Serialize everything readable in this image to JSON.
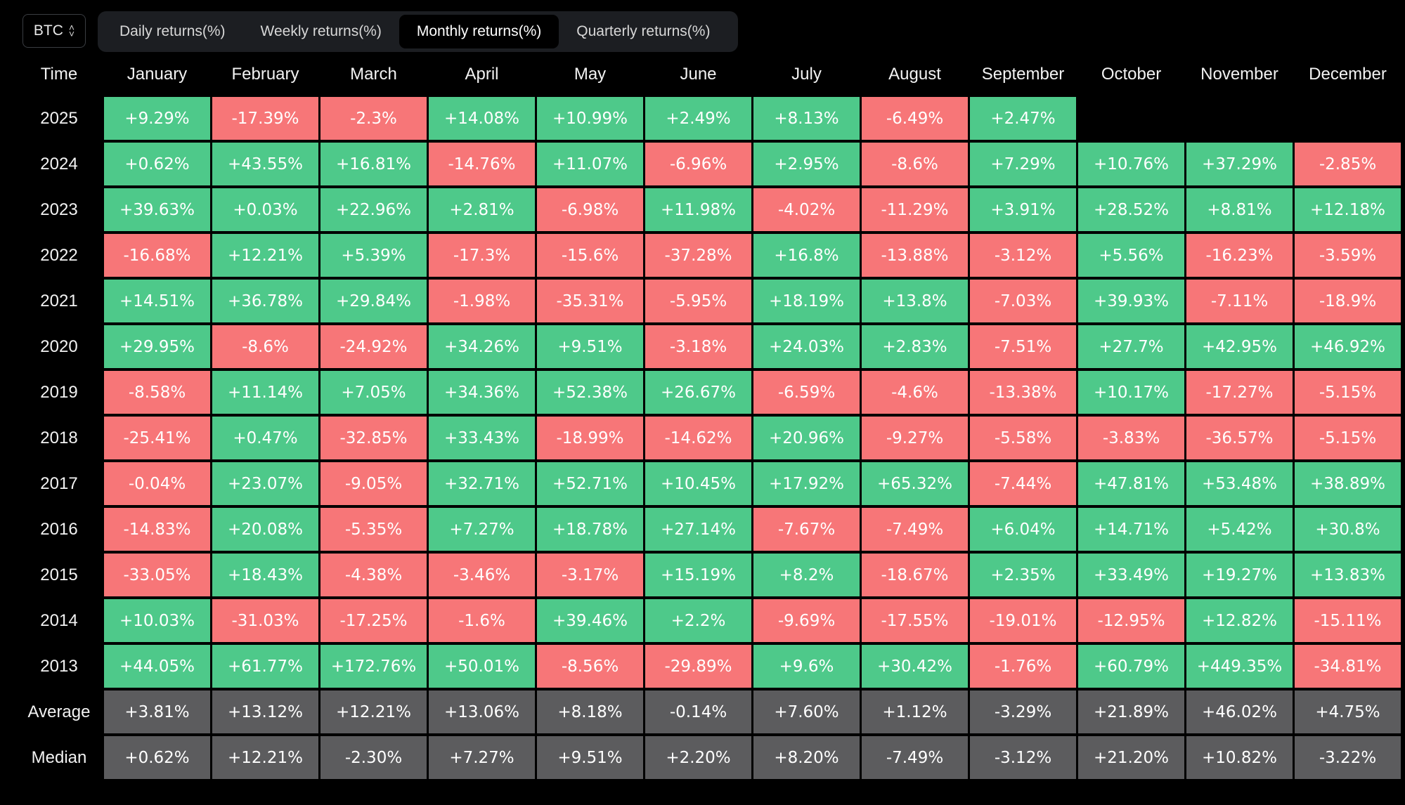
{
  "asset_selector": {
    "value": "BTC"
  },
  "tabs": [
    {
      "label": "Daily returns(%)",
      "active": false
    },
    {
      "label": "Weekly returns(%)",
      "active": false
    },
    {
      "label": "Monthly returns(%)",
      "active": true
    },
    {
      "label": "Quarterly returns(%)",
      "active": false
    }
  ],
  "colors": {
    "positive": "#4ec98a",
    "negative": "#f77678",
    "stat": "#5c5c5e",
    "background": "#000000"
  },
  "chart_data": {
    "type": "heatmap",
    "row_header": "Time",
    "columns": [
      "January",
      "February",
      "March",
      "April",
      "May",
      "June",
      "July",
      "August",
      "September",
      "October",
      "November",
      "December"
    ],
    "rows": [
      {
        "label": "2025",
        "values": [
          "+9.29%",
          "-17.39%",
          "-2.3%",
          "+14.08%",
          "+10.99%",
          "+2.49%",
          "+8.13%",
          "-6.49%",
          "+2.47%",
          "",
          "",
          ""
        ]
      },
      {
        "label": "2024",
        "values": [
          "+0.62%",
          "+43.55%",
          "+16.81%",
          "-14.76%",
          "+11.07%",
          "-6.96%",
          "+2.95%",
          "-8.6%",
          "+7.29%",
          "+10.76%",
          "+37.29%",
          "-2.85%"
        ]
      },
      {
        "label": "2023",
        "values": [
          "+39.63%",
          "+0.03%",
          "+22.96%",
          "+2.81%",
          "-6.98%",
          "+11.98%",
          "-4.02%",
          "-11.29%",
          "+3.91%",
          "+28.52%",
          "+8.81%",
          "+12.18%"
        ]
      },
      {
        "label": "2022",
        "values": [
          "-16.68%",
          "+12.21%",
          "+5.39%",
          "-17.3%",
          "-15.6%",
          "-37.28%",
          "+16.8%",
          "-13.88%",
          "-3.12%",
          "+5.56%",
          "-16.23%",
          "-3.59%"
        ]
      },
      {
        "label": "2021",
        "values": [
          "+14.51%",
          "+36.78%",
          "+29.84%",
          "-1.98%",
          "-35.31%",
          "-5.95%",
          "+18.19%",
          "+13.8%",
          "-7.03%",
          "+39.93%",
          "-7.11%",
          "-18.9%"
        ]
      },
      {
        "label": "2020",
        "values": [
          "+29.95%",
          "-8.6%",
          "-24.92%",
          "+34.26%",
          "+9.51%",
          "-3.18%",
          "+24.03%",
          "+2.83%",
          "-7.51%",
          "+27.7%",
          "+42.95%",
          "+46.92%"
        ]
      },
      {
        "label": "2019",
        "values": [
          "-8.58%",
          "+11.14%",
          "+7.05%",
          "+34.36%",
          "+52.38%",
          "+26.67%",
          "-6.59%",
          "-4.6%",
          "-13.38%",
          "+10.17%",
          "-17.27%",
          "-5.15%"
        ]
      },
      {
        "label": "2018",
        "values": [
          "-25.41%",
          "+0.47%",
          "-32.85%",
          "+33.43%",
          "-18.99%",
          "-14.62%",
          "+20.96%",
          "-9.27%",
          "-5.58%",
          "-3.83%",
          "-36.57%",
          "-5.15%"
        ]
      },
      {
        "label": "2017",
        "values": [
          "-0.04%",
          "+23.07%",
          "-9.05%",
          "+32.71%",
          "+52.71%",
          "+10.45%",
          "+17.92%",
          "+65.32%",
          "-7.44%",
          "+47.81%",
          "+53.48%",
          "+38.89%"
        ]
      },
      {
        "label": "2016",
        "values": [
          "-14.83%",
          "+20.08%",
          "-5.35%",
          "+7.27%",
          "+18.78%",
          "+27.14%",
          "-7.67%",
          "-7.49%",
          "+6.04%",
          "+14.71%",
          "+5.42%",
          "+30.8%"
        ]
      },
      {
        "label": "2015",
        "values": [
          "-33.05%",
          "+18.43%",
          "-4.38%",
          "-3.46%",
          "-3.17%",
          "+15.19%",
          "+8.2%",
          "-18.67%",
          "+2.35%",
          "+33.49%",
          "+19.27%",
          "+13.83%"
        ]
      },
      {
        "label": "2014",
        "values": [
          "+10.03%",
          "-31.03%",
          "-17.25%",
          "-1.6%",
          "+39.46%",
          "+2.2%",
          "-9.69%",
          "-17.55%",
          "-19.01%",
          "-12.95%",
          "+12.82%",
          "-15.11%"
        ]
      },
      {
        "label": "2013",
        "values": [
          "+44.05%",
          "+61.77%",
          "+172.76%",
          "+50.01%",
          "-8.56%",
          "-29.89%",
          "+9.6%",
          "+30.42%",
          "-1.76%",
          "+60.79%",
          "+449.35%",
          "-34.81%"
        ]
      }
    ],
    "summary_rows": [
      {
        "label": "Average",
        "values": [
          "+3.81%",
          "+13.12%",
          "+12.21%",
          "+13.06%",
          "+8.18%",
          "-0.14%",
          "+7.60%",
          "+1.12%",
          "-3.29%",
          "+21.89%",
          "+46.02%",
          "+4.75%"
        ]
      },
      {
        "label": "Median",
        "values": [
          "+0.62%",
          "+12.21%",
          "-2.30%",
          "+7.27%",
          "+9.51%",
          "+2.20%",
          "+8.20%",
          "-7.49%",
          "-3.12%",
          "+21.20%",
          "+10.82%",
          "-3.22%"
        ]
      }
    ]
  }
}
